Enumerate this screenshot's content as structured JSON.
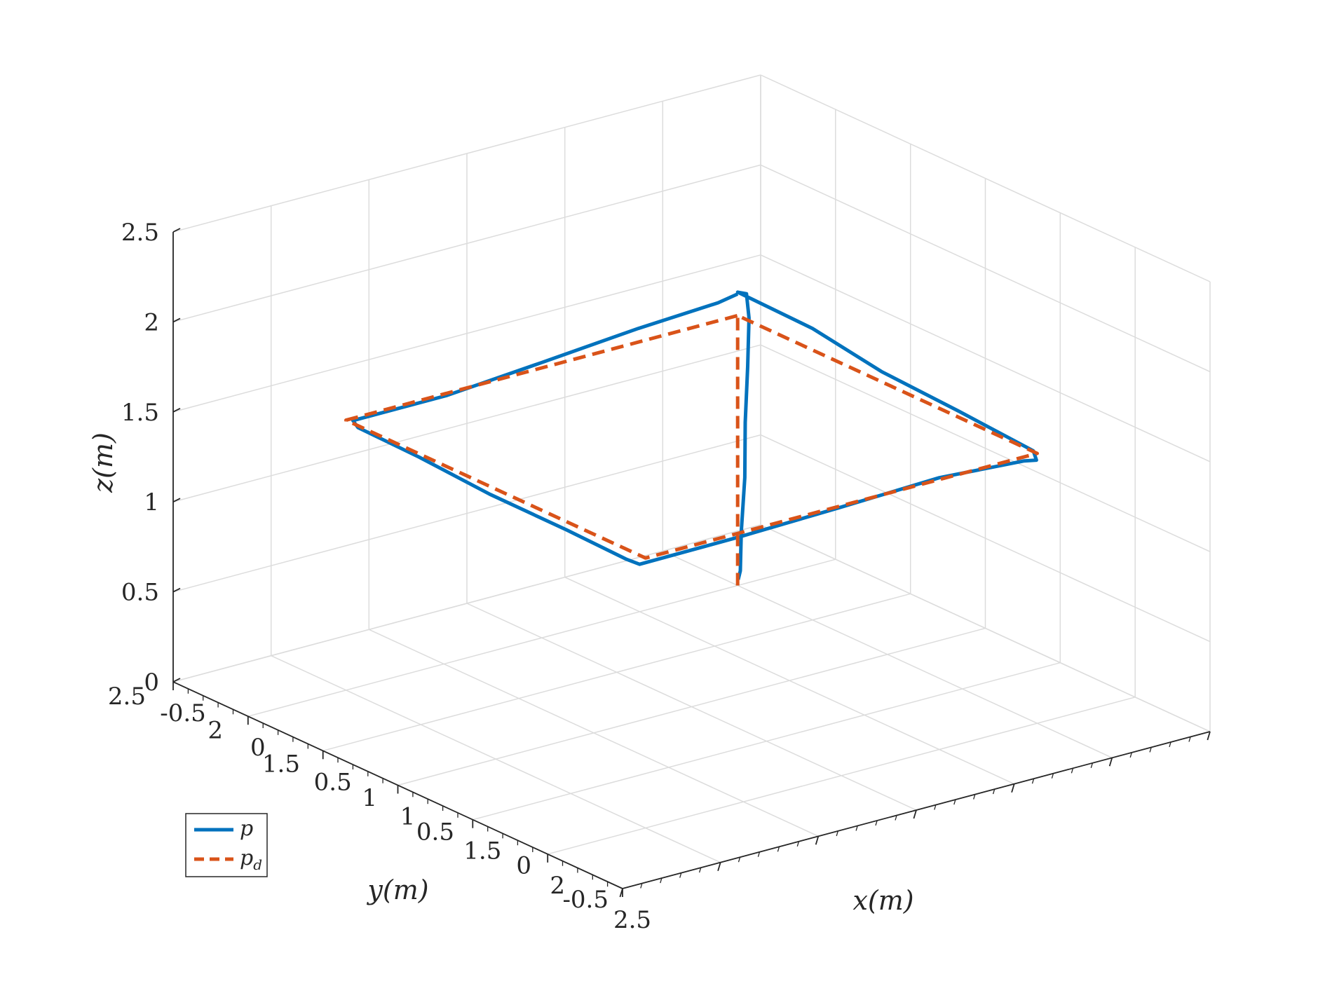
{
  "chart_data": {
    "type": "line3d",
    "xlabel": "x(m)",
    "ylabel": "y(m)",
    "zlabel": "z(m)",
    "xlim": [
      -0.5,
      2.5
    ],
    "ylim": [
      -0.5,
      2.5
    ],
    "zlim": [
      0,
      2.5
    ],
    "x_ticks": [
      -0.5,
      0,
      0.5,
      1,
      1.5,
      2,
      2.5
    ],
    "y_ticks": [
      -0.5,
      0,
      0.5,
      1,
      1.5,
      2,
      2.5
    ],
    "z_ticks": [
      0,
      0.5,
      1,
      1.5,
      2,
      2.5
    ],
    "x_tick_labels": [
      "-0.5",
      "0",
      "0.5",
      "1",
      "1.5",
      "2",
      "2.5"
    ],
    "y_tick_labels": [
      "-0.5",
      "0",
      "0.5",
      "1",
      "1.5",
      "2",
      "2.5"
    ],
    "z_tick_labels": [
      "0",
      "0.5",
      "1",
      "1.5",
      "2",
      "2.5"
    ],
    "grid": true,
    "legend_position": "bottom-left",
    "series": [
      {
        "name": "p",
        "color": "#0072BD",
        "style": "solid",
        "points": [
          [
            0.03,
            0.02,
            0.05
          ],
          [
            0.07,
            0.04,
            0.12
          ],
          [
            0.09,
            0.05,
            0.35
          ],
          [
            0.1,
            0.04,
            0.65
          ],
          [
            0.09,
            0.03,
            0.95
          ],
          [
            0.08,
            0.01,
            1.25
          ],
          [
            0.05,
            -0.02,
            1.5
          ],
          [
            0.02,
            -0.03,
            1.62
          ],
          [
            0.0,
            0.0,
            1.63
          ],
          [
            0.5,
            0.0,
            1.62
          ],
          [
            1.0,
            0.03,
            1.58
          ],
          [
            1.5,
            0.02,
            1.55
          ],
          [
            2.0,
            0.02,
            1.52
          ],
          [
            2.06,
            0.05,
            1.5
          ],
          [
            2.07,
            0.12,
            1.52
          ],
          [
            2.0,
            0.5,
            1.51
          ],
          [
            1.98,
            1.0,
            1.48
          ],
          [
            1.97,
            1.5,
            1.46
          ],
          [
            1.96,
            2.0,
            1.45
          ],
          [
            1.9,
            2.02,
            1.46
          ],
          [
            1.5,
            2.02,
            1.47
          ],
          [
            1.0,
            2.03,
            1.48
          ],
          [
            0.5,
            2.01,
            1.49
          ],
          [
            0.08,
            2.0,
            1.49
          ],
          [
            0.02,
            1.98,
            1.5
          ],
          [
            0.02,
            1.5,
            1.5
          ],
          [
            0.0,
            1.0,
            1.53
          ],
          [
            -0.01,
            0.5,
            1.57
          ],
          [
            0.0,
            0.1,
            1.6
          ],
          [
            0.0,
            0.0,
            1.62
          ]
        ]
      },
      {
        "name": "p_d",
        "color": "#D95319",
        "style": "dashed",
        "points": [
          [
            0.0,
            0.0,
            0.0
          ],
          [
            0.0,
            0.0,
            1.5
          ],
          [
            2.0,
            0.0,
            1.5
          ],
          [
            2.0,
            2.0,
            1.5
          ],
          [
            0.0,
            2.0,
            1.5
          ],
          [
            0.0,
            0.0,
            1.5
          ]
        ]
      }
    ]
  },
  "legend": {
    "items": [
      {
        "label": "p",
        "subscript": ""
      },
      {
        "label": "p",
        "subscript": "d"
      }
    ]
  }
}
